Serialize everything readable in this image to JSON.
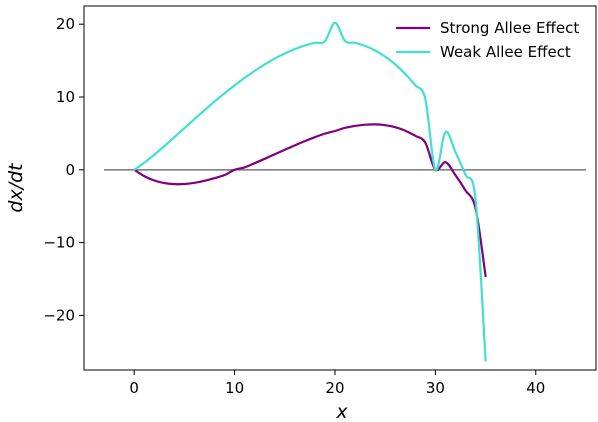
{
  "chart_data": {
    "type": "line",
    "title": "",
    "xlabel": "x",
    "ylabel": "dx/dt",
    "xlim": [
      -5,
      46
    ],
    "ylim": [
      -27.5,
      22.5
    ],
    "xticks": [
      "0",
      "10",
      "20",
      "30",
      "40"
    ],
    "yticks": [
      "20",
      "10",
      "0",
      "−10",
      "−20"
    ],
    "legend_position": "top-right",
    "grid": false,
    "baseline": {
      "y": 0,
      "x_range": [
        -3,
        45
      ],
      "color": "#808080"
    },
    "series": [
      {
        "name": "Strong Allee Effect",
        "color": "#800080",
        "x": [
          0,
          1,
          2,
          3,
          4,
          5,
          6,
          7,
          8,
          9,
          10,
          11,
          12,
          13,
          14,
          15,
          16,
          17,
          18,
          19,
          20,
          21,
          22,
          23,
          24,
          25,
          26,
          27,
          28,
          29,
          30,
          31,
          32,
          33,
          34,
          35
        ],
        "y": [
          0,
          -0.87,
          -1.47,
          -1.82,
          -1.97,
          -1.95,
          -1.79,
          -1.51,
          -1.15,
          -0.72,
          0,
          0.33,
          0.91,
          1.51,
          2.13,
          2.75,
          3.36,
          3.94,
          4.48,
          4.97,
          5.33,
          5.76,
          6.03,
          6.2,
          6.24,
          6.13,
          5.85,
          5.37,
          4.67,
          3.73,
          0,
          1.05,
          -0.73,
          -2.83,
          -5.27,
          -14.6
        ]
      },
      {
        "name": "Weak Allee Effect",
        "color": "#40e0d0",
        "x": [
          0,
          1,
          2,
          3,
          4,
          5,
          6,
          7,
          8,
          9,
          10,
          11,
          12,
          13,
          14,
          15,
          16,
          17,
          18,
          19,
          20,
          21,
          22,
          23,
          24,
          25,
          26,
          27,
          28,
          29,
          30,
          31,
          32,
          33,
          34,
          35
        ],
        "y": [
          0,
          0.97,
          2.07,
          3.25,
          4.48,
          5.72,
          6.96,
          8.18,
          9.37,
          10.51,
          11.6,
          12.63,
          13.59,
          14.48,
          15.28,
          15.98,
          16.58,
          17.07,
          17.44,
          17.67,
          20.2,
          17.7,
          17.45,
          17.02,
          16.39,
          15.55,
          14.48,
          13.17,
          11.6,
          9.75,
          0,
          5.17,
          2.43,
          -0.66,
          -4.08,
          -26.2
        ]
      }
    ]
  }
}
